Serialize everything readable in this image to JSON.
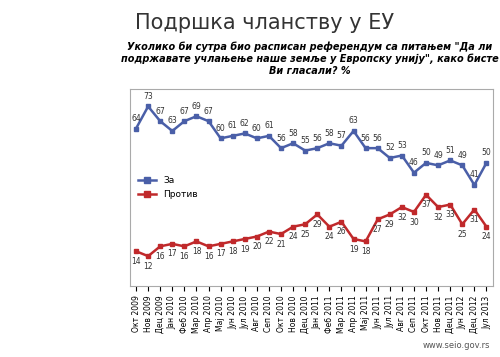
{
  "chart_data": {
    "type": "line",
    "title": "Подршка чланству у ЕУ",
    "subtitle": "Уколико би сутра био расписан референдум са питањем \"Да ли подржавате учлањење наше земље у Европску унију\", како бисте Ви гласали? %",
    "source": "www.seio.gov.rs",
    "categories": [
      "Окт 2009",
      "Нов 2009",
      "Дец 2009",
      "Јан 2010",
      "Феб 2010",
      "Мар 2010",
      "Апр 2010",
      "Мај 2010",
      "Јун 2010",
      "Јул 2010",
      "Авг 2010",
      "Сеп 2010",
      "Окт 2010",
      "Нов 2010",
      "Дец 2010",
      "Јан 2011",
      "Феб 2011",
      "Мар 2011",
      "Апр 2011",
      "Мај 2011",
      "Јун 2011",
      "Јул 2011",
      "Авг 2011",
      "Сеп 2011",
      "Окт 2011",
      "Нов 2011",
      "Дец 2011",
      "Јун 2012",
      "Дец 2012",
      "Јул 2013"
    ],
    "series": [
      {
        "name": "За",
        "color": "#4a5fa8",
        "marker": "square",
        "values": [
          64,
          73,
          67,
          63,
          67,
          69,
          67,
          60,
          61,
          62,
          60,
          61,
          56,
          58,
          55,
          56,
          58,
          57,
          63,
          56,
          56,
          52,
          53,
          46,
          50,
          49,
          51,
          49,
          41,
          50
        ]
      },
      {
        "name": "Против",
        "color": "#c0292b",
        "marker": "square",
        "values": [
          14,
          12,
          16,
          17,
          16,
          18,
          16,
          17,
          18,
          19,
          20,
          22,
          21,
          24,
          25,
          29,
          24,
          26,
          19,
          18,
          27,
          29,
          32,
          30,
          37,
          32,
          33,
          25,
          31,
          24
        ]
      }
    ],
    "ylim": [
      0,
      80
    ],
    "yticks": [],
    "tick_labels": "x",
    "data_labels": true,
    "legend": "center left",
    "grid": false
  }
}
